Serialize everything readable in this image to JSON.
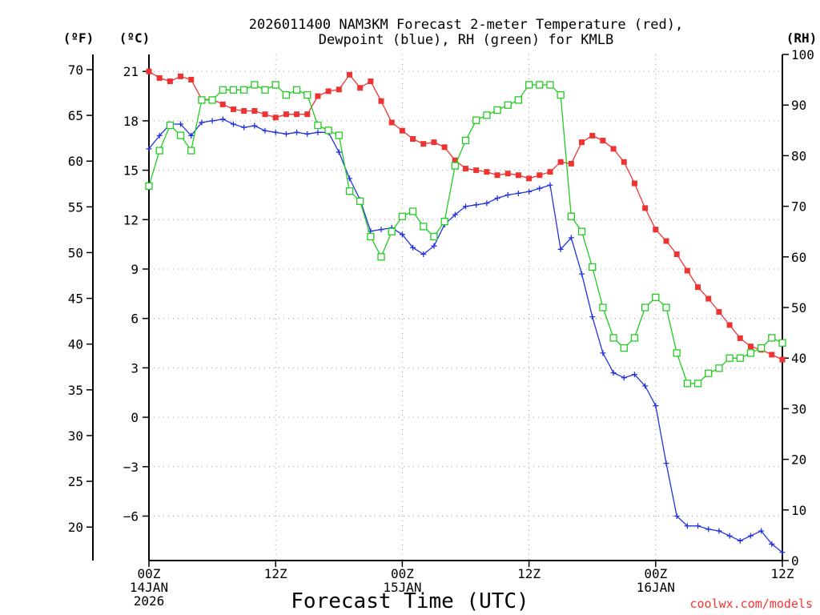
{
  "chart_data": {
    "type": "line",
    "title_line1": "2026011400 NAM3KM Forecast 2-meter Temperature (red),",
    "title_line2": "Dewpoint (blue), RH (green) for KMLB",
    "xlabel": "Forecast Time (UTC)",
    "credit": "coolwx.com/models",
    "credit_color": "#ff3030",
    "x_range_hours": [
      0,
      60
    ],
    "x_ticks": [
      {
        "hour": 0,
        "line1": "00Z",
        "line2": "14JAN",
        "line3": "2026"
      },
      {
        "hour": 12,
        "line1": "12Z",
        "line2": "",
        "line3": ""
      },
      {
        "hour": 24,
        "line1": "00Z",
        "line2": "15JAN",
        "line3": ""
      },
      {
        "hour": 36,
        "line1": "12Z",
        "line2": "",
        "line3": ""
      },
      {
        "hour": 48,
        "line1": "00Z",
        "line2": "16JAN",
        "line3": ""
      },
      {
        "hour": 60,
        "line1": "12Z",
        "line2": "",
        "line3": ""
      }
    ],
    "axes": {
      "fahrenheit": {
        "unit_label": "(ºF)",
        "range": [
          16.34,
          71.66
        ],
        "ticks": [
          70,
          65,
          60,
          55,
          50,
          45,
          40,
          35,
          30,
          25,
          20
        ]
      },
      "celsius": {
        "unit_label": "(ºC)",
        "range": [
          -8.7,
          22.03
        ],
        "ticks": [
          21,
          18,
          15,
          12,
          9,
          6,
          3,
          0,
          -3,
          -6
        ],
        "tick_labels": [
          "21",
          "18",
          "15",
          "12",
          "9",
          "6",
          "3",
          "0",
          "−3",
          "−6"
        ]
      },
      "rh": {
        "unit_label": "(RH)",
        "range": [
          0,
          100
        ],
        "ticks": [
          100,
          90,
          80,
          70,
          60,
          50,
          40,
          30,
          20,
          10,
          0
        ]
      }
    },
    "colors": {
      "temperature": "#ee3333",
      "dewpoint": "#2233dd",
      "rh": "#22cc22"
    },
    "series": [
      {
        "name": "Temperature",
        "units": "C",
        "marker": "filled-square",
        "hours": [
          0,
          1,
          2,
          3,
          4,
          5,
          6,
          7,
          8,
          9,
          10,
          11,
          12,
          13,
          14,
          15,
          16,
          17,
          18,
          19,
          20,
          21,
          22,
          23,
          24,
          25,
          26,
          27,
          28,
          29,
          30,
          31,
          32,
          33,
          34,
          35,
          36,
          37,
          38,
          39,
          40,
          41,
          42,
          43,
          44,
          45,
          46,
          47,
          48,
          49,
          50,
          51,
          52,
          53,
          54,
          55,
          56,
          57,
          58,
          59,
          60
        ],
        "values": [
          21.0,
          20.6,
          20.4,
          20.7,
          20.5,
          19.3,
          19.3,
          19.0,
          18.7,
          18.6,
          18.6,
          18.4,
          18.2,
          18.4,
          18.4,
          18.4,
          19.5,
          19.8,
          19.9,
          20.8,
          20.0,
          20.4,
          19.2,
          17.9,
          17.4,
          16.9,
          16.6,
          16.7,
          16.4,
          15.6,
          15.1,
          15.0,
          14.9,
          14.7,
          14.8,
          14.7,
          14.5,
          14.7,
          14.9,
          15.5,
          15.4,
          16.7,
          17.1,
          16.8,
          16.3,
          15.5,
          14.2,
          12.7,
          11.4,
          10.7,
          9.9,
          8.9,
          7.9,
          7.2,
          6.4,
          5.6,
          4.8,
          4.3,
          4.1,
          3.8,
          3.5
        ]
      },
      {
        "name": "Dewpoint",
        "units": "C",
        "marker": "plus",
        "hours": [
          0,
          1,
          2,
          3,
          4,
          5,
          6,
          7,
          8,
          9,
          10,
          11,
          12,
          13,
          14,
          15,
          16,
          17,
          18,
          19,
          20,
          21,
          22,
          23,
          24,
          25,
          26,
          27,
          28,
          29,
          30,
          31,
          32,
          33,
          34,
          35,
          36,
          37,
          38,
          39,
          40,
          41,
          42,
          43,
          44,
          45,
          46,
          47,
          48,
          49,
          50,
          51,
          52,
          53,
          54,
          55,
          56,
          57,
          58,
          59,
          60
        ],
        "values": [
          16.3,
          17.1,
          17.8,
          17.8,
          17.1,
          17.9,
          18.0,
          18.1,
          17.8,
          17.6,
          17.7,
          17.4,
          17.3,
          17.2,
          17.3,
          17.2,
          17.3,
          17.3,
          16.1,
          14.5,
          13.2,
          11.3,
          11.4,
          11.5,
          11.1,
          10.3,
          9.9,
          10.4,
          11.7,
          12.3,
          12.8,
          12.9,
          13.0,
          13.3,
          13.5,
          13.6,
          13.7,
          13.9,
          14.1,
          10.2,
          10.9,
          8.7,
          6.1,
          3.9,
          2.7,
          2.4,
          2.6,
          1.9,
          0.7,
          -2.8,
          -6.0,
          -6.6,
          -6.6,
          -6.8,
          -6.9,
          -7.2,
          -7.5,
          -7.2,
          -6.9,
          -7.7,
          -8.2
        ]
      },
      {
        "name": "RH",
        "units": "%",
        "marker": "open-square",
        "hours": [
          0,
          1,
          2,
          3,
          4,
          5,
          6,
          7,
          8,
          9,
          10,
          11,
          12,
          13,
          14,
          15,
          16,
          17,
          18,
          19,
          20,
          21,
          22,
          23,
          24,
          25,
          26,
          27,
          28,
          29,
          30,
          31,
          32,
          33,
          34,
          35,
          36,
          37,
          38,
          39,
          40,
          41,
          42,
          43,
          44,
          45,
          46,
          47,
          48,
          49,
          50,
          51,
          52,
          53,
          54,
          55,
          56,
          57,
          58,
          59,
          60
        ],
        "values": [
          74,
          81,
          86,
          84,
          81,
          91,
          91,
          93,
          93,
          93,
          94,
          93,
          94,
          92,
          93,
          92,
          86,
          85,
          84,
          73,
          71,
          64,
          60,
          65,
          68,
          69,
          66,
          64,
          67,
          78,
          83,
          87,
          88,
          89,
          90,
          91,
          94,
          94,
          94,
          92,
          68,
          65,
          58,
          50,
          44,
          42,
          44,
          50,
          52,
          50,
          41,
          35,
          35,
          37,
          38,
          40,
          40,
          41,
          42,
          44,
          43
        ]
      }
    ]
  }
}
